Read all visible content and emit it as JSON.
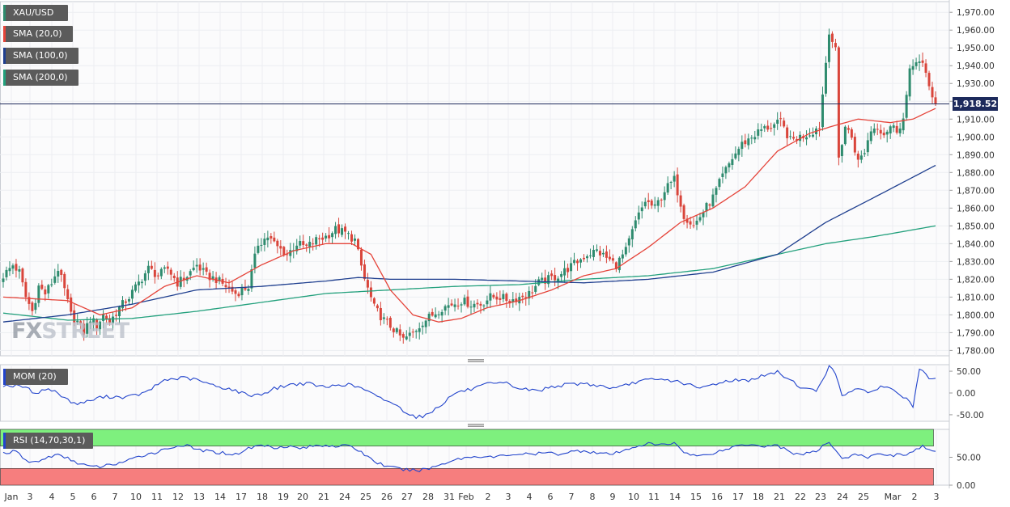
{
  "symbol": "XAU/USD",
  "watermark": {
    "prefix": "FX",
    "suffix": "STREET"
  },
  "last_price_label": "1,918.52",
  "colors": {
    "bull": "#2e8b6e",
    "bear": "#d9453b",
    "sma20": "#e5443a",
    "sma100": "#1f3f8f",
    "sma200": "#22a07c",
    "mom": "#2244cc",
    "rsi": "#2244cc",
    "rsi_upper_zone": "#7ef07e",
    "rsi_lower_zone": "#f67e7e",
    "price_line": "#1d2a5c"
  },
  "indicators": {
    "sma20_label": "SMA (20,0)",
    "sma100_label": "SMA (100,0)",
    "sma200_label": "SMA (200,0)",
    "mom_label": "MOM (20)",
    "rsi_label": "RSI (14,70,30,1)"
  },
  "chart_data": [
    {
      "type": "candlestick",
      "title": "XAU/USD",
      "interval": "4h",
      "ylim": [
        1777,
        1976
      ],
      "y_ticks": [
        "1,780.00",
        "1,790.00",
        "1,800.00",
        "1,810.00",
        "1,820.00",
        "1,830.00",
        "1,840.00",
        "1,850.00",
        "1,860.00",
        "1,870.00",
        "1,880.00",
        "1,890.00",
        "1,900.00",
        "1,910.00",
        "1,920.00",
        "1,930.00",
        "1,940.00",
        "1,950.00",
        "1,960.00",
        "1,970.00"
      ],
      "y_tick_values": [
        1780,
        1790,
        1800,
        1810,
        1820,
        1830,
        1840,
        1850,
        1860,
        1870,
        1880,
        1890,
        1900,
        1910,
        1920,
        1930,
        1940,
        1950,
        1960,
        1970
      ],
      "x_tick_labels": [
        "Jan",
        "3",
        "4",
        "5",
        "6",
        "7",
        "10",
        "11",
        "12",
        "13",
        "14",
        "17",
        "18",
        "19",
        "20",
        "21",
        "24",
        "25",
        "26",
        "27",
        "28",
        "31",
        "Feb",
        "2",
        "3",
        "4",
        "6",
        "7",
        "8",
        "9",
        "10",
        "11",
        "14",
        "15",
        "16",
        "17",
        "18",
        "21",
        "22",
        "23",
        "24",
        "25",
        "Mar",
        "2",
        "3"
      ],
      "last_price": 1918.52,
      "close_anchors": [
        [
          0,
          1822
        ],
        [
          3,
          1828
        ],
        [
          5,
          1824
        ],
        [
          7,
          1810
        ],
        [
          9,
          1802
        ],
        [
          11,
          1816
        ],
        [
          13,
          1812
        ],
        [
          15,
          1818
        ],
        [
          17,
          1826
        ],
        [
          19,
          1814
        ],
        [
          21,
          1800
        ],
        [
          23,
          1796
        ],
        [
          25,
          1790
        ],
        [
          27,
          1798
        ],
        [
          29,
          1794
        ],
        [
          31,
          1800
        ],
        [
          33,
          1796
        ],
        [
          36,
          1804
        ],
        [
          39,
          1810
        ],
        [
          42,
          1818
        ],
        [
          45,
          1826
        ],
        [
          48,
          1822
        ],
        [
          51,
          1826
        ],
        [
          54,
          1818
        ],
        [
          57,
          1822
        ],
        [
          60,
          1828
        ],
        [
          63,
          1822
        ],
        [
          66,
          1820
        ],
        [
          69,
          1816
        ],
        [
          72,
          1812
        ],
        [
          76,
          1816
        ],
        [
          79,
          1840
        ],
        [
          82,
          1844
        ],
        [
          85,
          1838
        ],
        [
          88,
          1834
        ],
        [
          91,
          1840
        ],
        [
          94,
          1838
        ],
        [
          97,
          1842
        ],
        [
          100,
          1844
        ],
        [
          103,
          1848
        ],
        [
          106,
          1846
        ],
        [
          109,
          1842
        ],
        [
          112,
          1820
        ],
        [
          115,
          1804
        ],
        [
          118,
          1797
        ],
        [
          121,
          1792
        ],
        [
          124,
          1786
        ],
        [
          127,
          1790
        ],
        [
          130,
          1796
        ],
        [
          133,
          1800
        ],
        [
          136,
          1804
        ],
        [
          139,
          1806
        ],
        [
          142,
          1808
        ],
        [
          145,
          1806
        ],
        [
          148,
          1806
        ],
        [
          151,
          1810
        ],
        [
          154,
          1810
        ],
        [
          157,
          1808
        ],
        [
          160,
          1810
        ],
        [
          163,
          1812
        ],
        [
          166,
          1818
        ],
        [
          169,
          1820
        ],
        [
          172,
          1822
        ],
        [
          175,
          1826
        ],
        [
          178,
          1830
        ],
        [
          181,
          1834
        ],
        [
          184,
          1836
        ],
        [
          187,
          1832
        ],
        [
          190,
          1828
        ],
        [
          193,
          1836
        ],
        [
          196,
          1852
        ],
        [
          199,
          1864
        ],
        [
          202,
          1860
        ],
        [
          205,
          1870
        ],
        [
          208,
          1876
        ],
        [
          211,
          1856
        ],
        [
          214,
          1850
        ],
        [
          217,
          1858
        ],
        [
          220,
          1866
        ],
        [
          223,
          1878
        ],
        [
          226,
          1888
        ],
        [
          229,
          1896
        ],
        [
          232,
          1900
        ],
        [
          235,
          1904
        ],
        [
          238,
          1906
        ],
        [
          241,
          1908
        ],
        [
          244,
          1898
        ],
        [
          247,
          1900
        ],
        [
          250,
          1902
        ],
        [
          253,
          1906
        ],
        [
          256,
          1960
        ],
        [
          258,
          1948
        ],
        [
          259,
          1888
        ],
        [
          261,
          1906
        ],
        [
          263,
          1900
        ],
        [
          265,
          1886
        ],
        [
          267,
          1892
        ],
        [
          269,
          1904
        ],
        [
          271,
          1906
        ],
        [
          273,
          1902
        ],
        [
          275,
          1906
        ],
        [
          277,
          1904
        ],
        [
          279,
          1910
        ],
        [
          281,
          1936
        ],
        [
          283,
          1944
        ],
        [
          285,
          1940
        ],
        [
          287,
          1928
        ],
        [
          289,
          1918.5
        ]
      ],
      "sma_paths": {
        "sma20": [
          [
            0,
            1810
          ],
          [
            20,
            1808
          ],
          [
            30,
            1800
          ],
          [
            40,
            1804
          ],
          [
            50,
            1816
          ],
          [
            60,
            1822
          ],
          [
            70,
            1818
          ],
          [
            80,
            1828
          ],
          [
            90,
            1836
          ],
          [
            100,
            1840
          ],
          [
            108,
            1840
          ],
          [
            114,
            1834
          ],
          [
            120,
            1814
          ],
          [
            127,
            1800
          ],
          [
            135,
            1796
          ],
          [
            142,
            1798
          ],
          [
            150,
            1804
          ],
          [
            160,
            1808
          ],
          [
            170,
            1814
          ],
          [
            180,
            1822
          ],
          [
            190,
            1826
          ],
          [
            200,
            1838
          ],
          [
            210,
            1852
          ],
          [
            220,
            1860
          ],
          [
            230,
            1872
          ],
          [
            240,
            1892
          ],
          [
            250,
            1902
          ],
          [
            257,
            1906
          ],
          [
            265,
            1910
          ],
          [
            275,
            1908
          ],
          [
            282,
            1910
          ],
          [
            289,
            1916
          ]
        ],
        "sma100": [
          [
            0,
            1796
          ],
          [
            20,
            1800
          ],
          [
            40,
            1806
          ],
          [
            60,
            1814
          ],
          [
            80,
            1816
          ],
          [
            100,
            1819
          ],
          [
            110,
            1821
          ],
          [
            120,
            1820
          ],
          [
            140,
            1820
          ],
          [
            160,
            1819
          ],
          [
            180,
            1818
          ],
          [
            200,
            1820
          ],
          [
            220,
            1824
          ],
          [
            240,
            1834
          ],
          [
            255,
            1852
          ],
          [
            270,
            1866
          ],
          [
            289,
            1884
          ]
        ],
        "sma200": [
          [
            0,
            1801
          ],
          [
            20,
            1797
          ],
          [
            40,
            1798
          ],
          [
            60,
            1802
          ],
          [
            80,
            1807
          ],
          [
            100,
            1812
          ],
          [
            120,
            1814
          ],
          [
            140,
            1816
          ],
          [
            160,
            1817
          ],
          [
            180,
            1820
          ],
          [
            200,
            1822
          ],
          [
            220,
            1826
          ],
          [
            240,
            1834
          ],
          [
            255,
            1840
          ],
          [
            270,
            1844
          ],
          [
            289,
            1850
          ]
        ]
      }
    },
    {
      "type": "line",
      "title": "MOM (20)",
      "ylim": [
        -65,
        65
      ],
      "y_ticks": [
        "50.00",
        "0.00",
        "-50.00"
      ],
      "y_tick_values": [
        50,
        0,
        -50
      ],
      "anchors": [
        [
          0,
          18
        ],
        [
          6,
          15
        ],
        [
          10,
          0
        ],
        [
          14,
          10
        ],
        [
          18,
          -5
        ],
        [
          22,
          -25
        ],
        [
          26,
          -20
        ],
        [
          30,
          -10
        ],
        [
          34,
          -8
        ],
        [
          38,
          -10
        ],
        [
          44,
          0
        ],
        [
          50,
          30
        ],
        [
          56,
          35
        ],
        [
          60,
          30
        ],
        [
          66,
          15
        ],
        [
          70,
          10
        ],
        [
          76,
          -5
        ],
        [
          80,
          -3
        ],
        [
          84,
          10
        ],
        [
          88,
          18
        ],
        [
          92,
          22
        ],
        [
          96,
          20
        ],
        [
          100,
          12
        ],
        [
          104,
          20
        ],
        [
          108,
          18
        ],
        [
          112,
          8
        ],
        [
          116,
          -10
        ],
        [
          120,
          -20
        ],
        [
          124,
          -40
        ],
        [
          128,
          -55
        ],
        [
          131,
          -52
        ],
        [
          136,
          -25
        ],
        [
          140,
          0
        ],
        [
          146,
          10
        ],
        [
          150,
          20
        ],
        [
          156,
          22
        ],
        [
          160,
          10
        ],
        [
          166,
          5
        ],
        [
          170,
          15
        ],
        [
          176,
          20
        ],
        [
          180,
          22
        ],
        [
          186,
          15
        ],
        [
          190,
          10
        ],
        [
          196,
          25
        ],
        [
          200,
          30
        ],
        [
          206,
          30
        ],
        [
          210,
          25
        ],
        [
          216,
          10
        ],
        [
          220,
          20
        ],
        [
          226,
          30
        ],
        [
          230,
          28
        ],
        [
          236,
          40
        ],
        [
          240,
          48
        ],
        [
          244,
          30
        ],
        [
          248,
          10
        ],
        [
          252,
          5
        ],
        [
          256,
          60
        ],
        [
          258,
          45
        ],
        [
          260,
          -5
        ],
        [
          264,
          10
        ],
        [
          268,
          0
        ],
        [
          272,
          15
        ],
        [
          276,
          8
        ],
        [
          280,
          -15
        ],
        [
          282,
          -30
        ],
        [
          284,
          55
        ],
        [
          286,
          40
        ],
        [
          288,
          30
        ],
        [
          289,
          30
        ]
      ]
    },
    {
      "type": "line",
      "title": "RSI (14,70,30,1)",
      "ylim": [
        0,
        100
      ],
      "y_ticks": [
        "50.00",
        "0.00"
      ],
      "y_tick_values": [
        50,
        0
      ],
      "overbought": 70,
      "oversold": 30,
      "anchors": [
        [
          0,
          58
        ],
        [
          4,
          60
        ],
        [
          8,
          40
        ],
        [
          12,
          45
        ],
        [
          16,
          55
        ],
        [
          20,
          48
        ],
        [
          24,
          38
        ],
        [
          28,
          32
        ],
        [
          32,
          35
        ],
        [
          36,
          40
        ],
        [
          40,
          46
        ],
        [
          44,
          55
        ],
        [
          48,
          60
        ],
        [
          52,
          68
        ],
        [
          56,
          72
        ],
        [
          60,
          64
        ],
        [
          64,
          60
        ],
        [
          68,
          58
        ],
        [
          72,
          55
        ],
        [
          76,
          66
        ],
        [
          80,
          72
        ],
        [
          84,
          68
        ],
        [
          88,
          70
        ],
        [
          92,
          66
        ],
        [
          96,
          70
        ],
        [
          100,
          72
        ],
        [
          104,
          70
        ],
        [
          108,
          70
        ],
        [
          112,
          55
        ],
        [
          116,
          40
        ],
        [
          120,
          32
        ],
        [
          124,
          28
        ],
        [
          128,
          26
        ],
        [
          132,
          30
        ],
        [
          136,
          38
        ],
        [
          140,
          46
        ],
        [
          144,
          50
        ],
        [
          148,
          52
        ],
        [
          152,
          50
        ],
        [
          156,
          54
        ],
        [
          160,
          56
        ],
        [
          164,
          55
        ],
        [
          168,
          58
        ],
        [
          172,
          56
        ],
        [
          176,
          60
        ],
        [
          180,
          62
        ],
        [
          184,
          58
        ],
        [
          188,
          55
        ],
        [
          192,
          60
        ],
        [
          196,
          70
        ],
        [
          200,
          74
        ],
        [
          204,
          72
        ],
        [
          208,
          76
        ],
        [
          212,
          56
        ],
        [
          216,
          52
        ],
        [
          220,
          58
        ],
        [
          224,
          64
        ],
        [
          228,
          72
        ],
        [
          232,
          74
        ],
        [
          236,
          70
        ],
        [
          240,
          72
        ],
        [
          244,
          58
        ],
        [
          248,
          56
        ],
        [
          252,
          60
        ],
        [
          256,
          78
        ],
        [
          258,
          64
        ],
        [
          260,
          48
        ],
        [
          264,
          54
        ],
        [
          268,
          50
        ],
        [
          272,
          56
        ],
        [
          276,
          54
        ],
        [
          280,
          56
        ],
        [
          282,
          60
        ],
        [
          285,
          70
        ],
        [
          287,
          62
        ],
        [
          289,
          58
        ]
      ]
    }
  ]
}
